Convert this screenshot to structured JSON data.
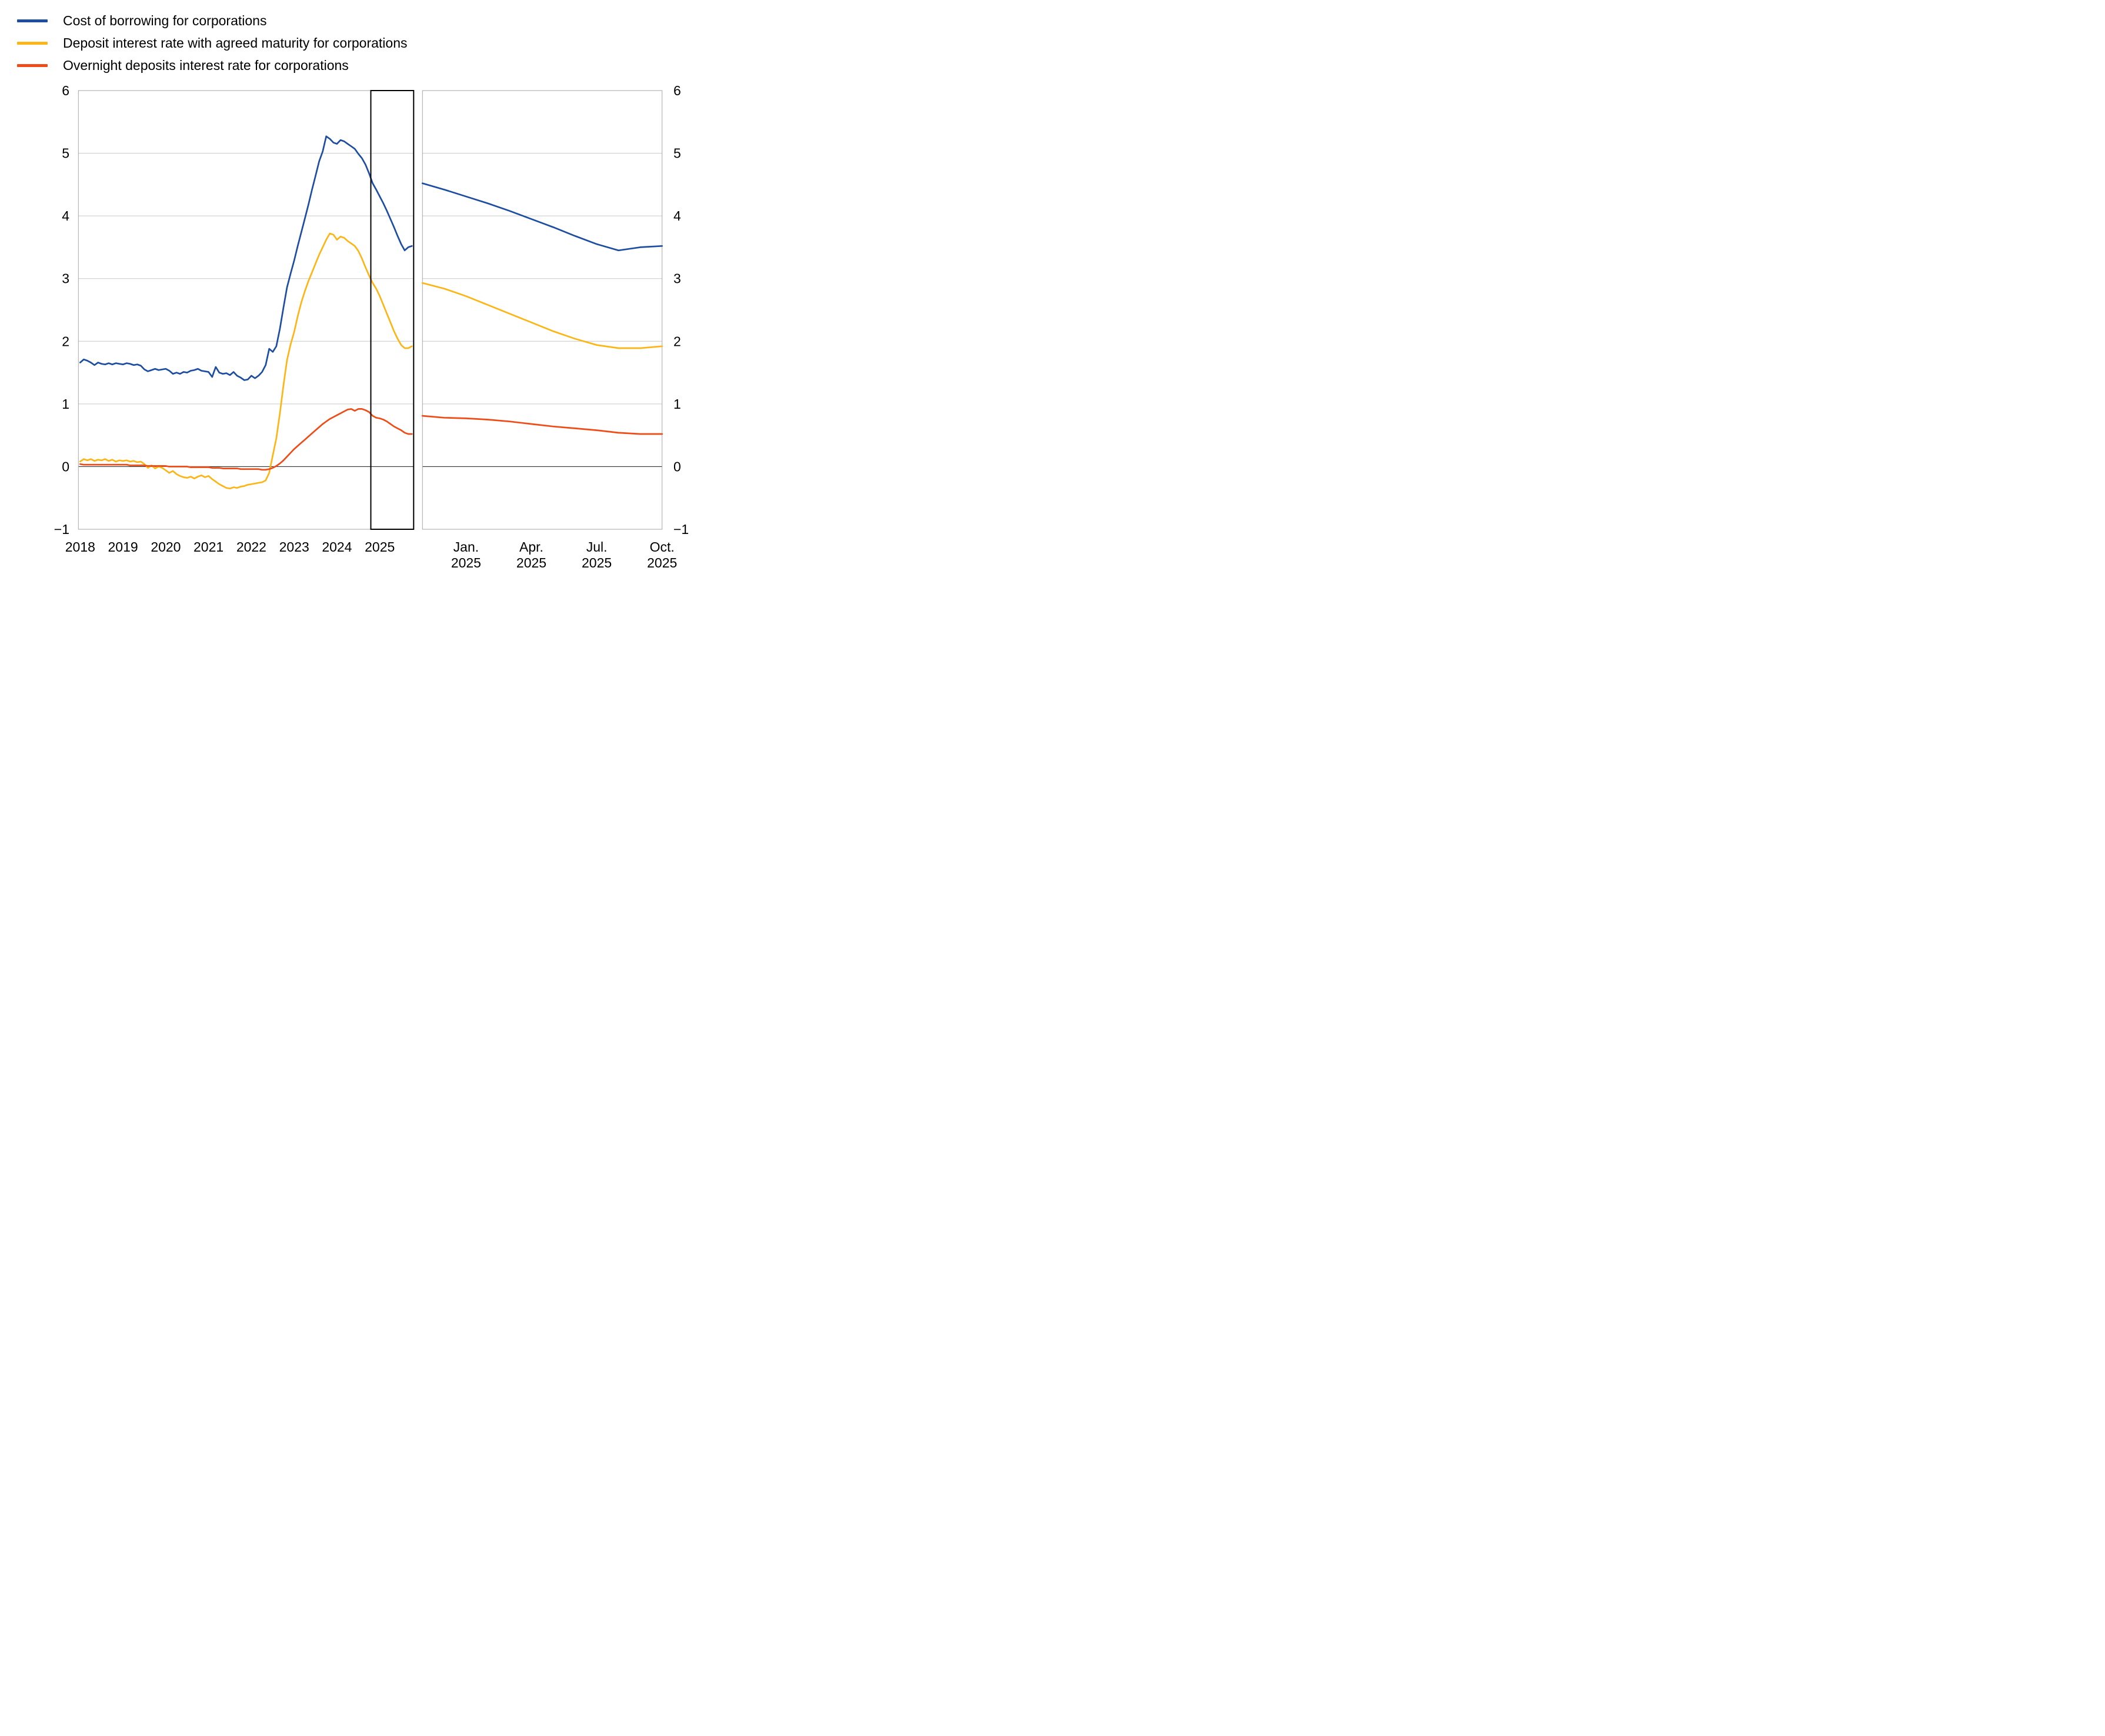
{
  "legend": {
    "items": [
      {
        "label": "Cost of borrowing for corporations",
        "color": "#1c4da0"
      },
      {
        "label": "Deposit interest rate with agreed maturity for corporations",
        "color": "#fcb515"
      },
      {
        "label": "Overnight deposits interest rate for corporations",
        "color": "#ee4b17"
      }
    ]
  },
  "chart_data": {
    "type": "line",
    "title": "",
    "xlabel": "",
    "ylabel": "",
    "ylim": [
      -1,
      6
    ],
    "grid": "horizontal",
    "legend_position": "top-left",
    "y_ticks": [
      {
        "label": "6",
        "value": 6
      },
      {
        "label": "5",
        "value": 5
      },
      {
        "label": "4",
        "value": 4
      },
      {
        "label": "3",
        "value": 3
      },
      {
        "label": "2",
        "value": 2
      },
      {
        "label": "1",
        "value": 1
      },
      {
        "label": "0",
        "value": 0
      },
      {
        "label": "−1",
        "value": -1
      }
    ],
    "panels": [
      {
        "id": "history",
        "x_range": "Jan 2018 - Oct 2025",
        "frequency": "monthly",
        "x_ticks": [
          {
            "label": "2018",
            "month_index": 0
          },
          {
            "label": "2019",
            "month_index": 12
          },
          {
            "label": "2020",
            "month_index": 24
          },
          {
            "label": "2021",
            "month_index": 36
          },
          {
            "label": "2022",
            "month_index": 48
          },
          {
            "label": "2023",
            "month_index": 60
          },
          {
            "label": "2024",
            "month_index": 72
          },
          {
            "label": "2025",
            "month_index": 84
          }
        ],
        "highlight_box": {
          "start_month_index": 82,
          "note": "Nov 2024 - Oct 2025"
        },
        "series": [
          {
            "name": "Cost of borrowing for corporations",
            "color": "#1c4da0",
            "values": [
              1.66,
              1.71,
              1.69,
              1.66,
              1.62,
              1.66,
              1.64,
              1.63,
              1.65,
              1.63,
              1.65,
              1.64,
              1.63,
              1.65,
              1.64,
              1.62,
              1.63,
              1.61,
              1.55,
              1.52,
              1.54,
              1.56,
              1.54,
              1.55,
              1.56,
              1.53,
              1.48,
              1.5,
              1.48,
              1.51,
              1.5,
              1.53,
              1.54,
              1.56,
              1.53,
              1.52,
              1.51,
              1.43,
              1.59,
              1.5,
              1.48,
              1.49,
              1.46,
              1.51,
              1.45,
              1.42,
              1.38,
              1.39,
              1.45,
              1.41,
              1.45,
              1.51,
              1.62,
              1.88,
              1.83,
              1.92,
              2.2,
              2.54,
              2.86,
              3.08,
              3.29,
              3.52,
              3.74,
              3.96,
              4.18,
              4.42,
              4.64,
              4.87,
              5.03,
              5.27,
              5.23,
              5.17,
              5.15,
              5.21,
              5.19,
              5.15,
              5.11,
              5.07,
              4.99,
              4.92,
              4.82,
              4.68,
              4.52,
              4.42,
              4.31,
              4.2,
              4.08,
              3.95,
              3.82,
              3.68,
              3.55,
              3.45,
              3.5,
              3.52
            ]
          },
          {
            "name": "Deposit interest rate with agreed maturity for corporations",
            "color": "#fcb515",
            "values": [
              0.08,
              0.12,
              0.1,
              0.12,
              0.09,
              0.11,
              0.1,
              0.12,
              0.09,
              0.11,
              0.08,
              0.1,
              0.09,
              0.1,
              0.08,
              0.09,
              0.07,
              0.08,
              0.04,
              -0.02,
              0.02,
              -0.03,
              0.0,
              -0.02,
              -0.06,
              -0.1,
              -0.07,
              -0.12,
              -0.15,
              -0.17,
              -0.18,
              -0.16,
              -0.19,
              -0.16,
              -0.14,
              -0.17,
              -0.15,
              -0.2,
              -0.24,
              -0.28,
              -0.31,
              -0.34,
              -0.35,
              -0.33,
              -0.34,
              -0.32,
              -0.31,
              -0.29,
              -0.28,
              -0.27,
              -0.26,
              -0.25,
              -0.22,
              -0.1,
              0.18,
              0.45,
              0.85,
              1.3,
              1.7,
              1.95,
              2.15,
              2.4,
              2.62,
              2.8,
              2.96,
              3.1,
              3.24,
              3.38,
              3.5,
              3.62,
              3.72,
              3.7,
              3.62,
              3.67,
              3.65,
              3.6,
              3.56,
              3.52,
              3.44,
              3.32,
              3.18,
              3.05,
              2.93,
              2.84,
              2.72,
              2.58,
              2.44,
              2.3,
              2.16,
              2.04,
              1.94,
              1.89,
              1.89,
              1.92
            ]
          },
          {
            "name": "Overnight deposits interest rate for corporations",
            "color": "#ee4b17",
            "values": [
              0.04,
              0.03,
              0.03,
              0.03,
              0.03,
              0.03,
              0.03,
              0.03,
              0.03,
              0.03,
              0.03,
              0.03,
              0.03,
              0.03,
              0.02,
              0.02,
              0.02,
              0.02,
              0.02,
              0.01,
              0.01,
              0.01,
              0.01,
              0.01,
              0.01,
              0.0,
              0.0,
              0.0,
              0.0,
              0.0,
              0.0,
              -0.01,
              -0.01,
              -0.01,
              -0.01,
              -0.01,
              -0.01,
              -0.02,
              -0.02,
              -0.02,
              -0.03,
              -0.03,
              -0.03,
              -0.03,
              -0.03,
              -0.04,
              -0.04,
              -0.04,
              -0.04,
              -0.04,
              -0.04,
              -0.05,
              -0.05,
              -0.04,
              -0.02,
              0.01,
              0.05,
              0.1,
              0.16,
              0.22,
              0.28,
              0.33,
              0.38,
              0.43,
              0.48,
              0.53,
              0.58,
              0.63,
              0.68,
              0.72,
              0.76,
              0.79,
              0.82,
              0.85,
              0.88,
              0.91,
              0.92,
              0.89,
              0.92,
              0.92,
              0.9,
              0.87,
              0.81,
              0.78,
              0.77,
              0.75,
              0.72,
              0.68,
              0.64,
              0.61,
              0.58,
              0.54,
              0.52,
              0.52
            ]
          }
        ]
      },
      {
        "id": "zoom",
        "x_range": "Nov 2024 - Oct 2025",
        "frequency": "monthly",
        "x_ticks": [
          {
            "line1": "Jan.",
            "line2": "2025",
            "month_index": 2
          },
          {
            "line1": "Apr.",
            "line2": "2025",
            "month_index": 5
          },
          {
            "line1": "Jul.",
            "line2": "2025",
            "month_index": 8
          },
          {
            "line1": "Oct.",
            "line2": "2025",
            "month_index": 11
          }
        ],
        "series": [
          {
            "name": "Cost of borrowing for corporations",
            "color": "#1c4da0",
            "values": [
              4.52,
              4.42,
              4.31,
              4.2,
              4.08,
              3.95,
              3.82,
              3.68,
              3.55,
              3.45,
              3.5,
              3.52
            ]
          },
          {
            "name": "Deposit interest rate with agreed maturity for corporations",
            "color": "#fcb515",
            "values": [
              2.93,
              2.84,
              2.72,
              2.58,
              2.44,
              2.3,
              2.16,
              2.04,
              1.94,
              1.89,
              1.89,
              1.92
            ]
          },
          {
            "name": "Overnight deposits interest rate for corporations",
            "color": "#ee4b17",
            "values": [
              0.81,
              0.78,
              0.77,
              0.75,
              0.72,
              0.68,
              0.64,
              0.61,
              0.58,
              0.54,
              0.52,
              0.52
            ]
          }
        ]
      }
    ]
  }
}
